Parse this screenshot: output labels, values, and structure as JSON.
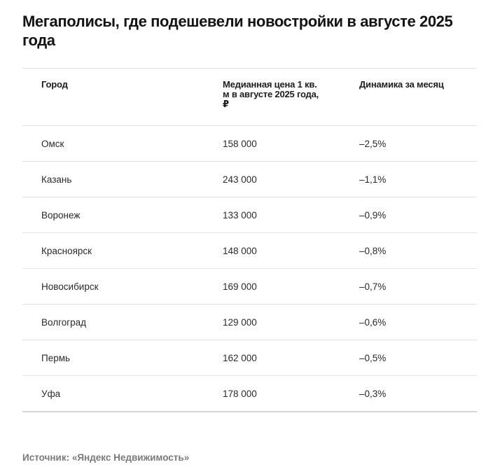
{
  "title": "Мегаполисы, где подешевели новостройки в августе 2025 года",
  "table": {
    "headers": [
      "Город",
      "Медианная цена 1 кв. м в августе 2025 года, ₽",
      "Динамика за месяц"
    ],
    "rows": [
      {
        "city": "Омск",
        "price": "158 000",
        "change": "–2,5%"
      },
      {
        "city": "Казань",
        "price": "243 000",
        "change": "–1,1%"
      },
      {
        "city": "Воронеж",
        "price": "133 000",
        "change": "–0,9%"
      },
      {
        "city": "Красноярск",
        "price": "148 000",
        "change": "–0,8%"
      },
      {
        "city": "Новосибирск",
        "price": "169 000",
        "change": "–0,7%"
      },
      {
        "city": "Волгоград",
        "price": "129 000",
        "change": "–0,6%"
      },
      {
        "city": "Пермь",
        "price": "162 000",
        "change": "–0,5%"
      },
      {
        "city": "Уфа",
        "price": "178 000",
        "change": "–0,3%"
      }
    ]
  },
  "source": "Источник: «Яндекс Недвижимость»"
}
